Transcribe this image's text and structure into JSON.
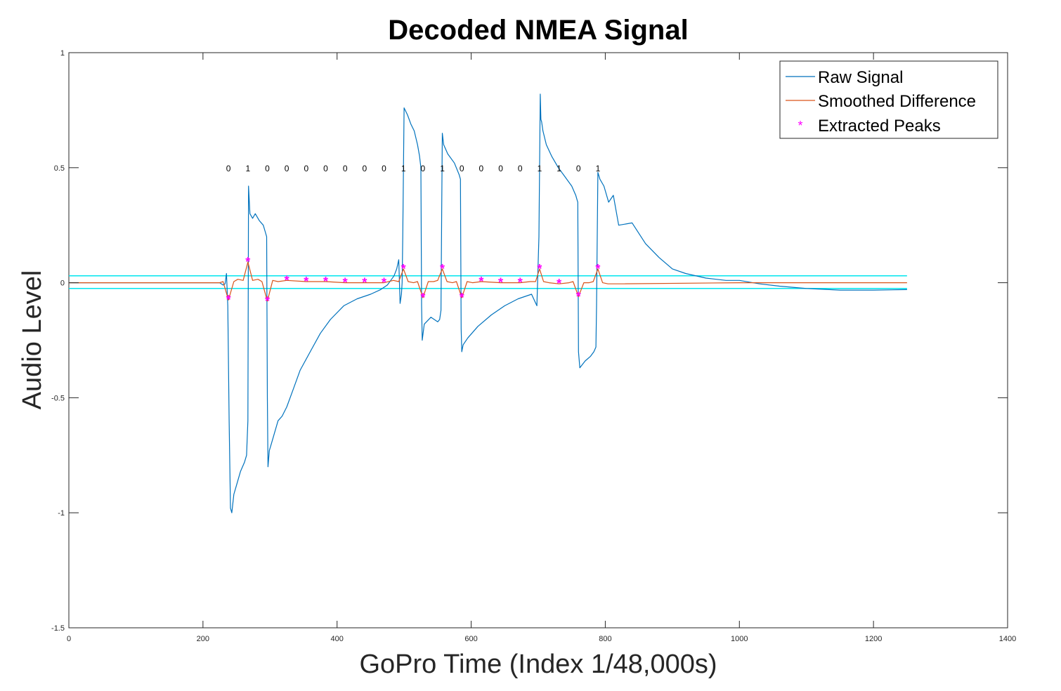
{
  "chart_data": {
    "type": "line",
    "title": "Decoded NMEA Signal",
    "xlabel": "GoPro Time (Index 1/48,000s)",
    "ylabel": "Audio Level",
    "xlim": [
      0,
      1400
    ],
    "ylim": [
      -1.5,
      1
    ],
    "xticks": [
      0,
      200,
      400,
      600,
      800,
      1000,
      1200,
      1400
    ],
    "xtick_labels": [
      "0",
      "200",
      "400",
      "600",
      "800",
      "1000",
      "1200",
      "1400"
    ],
    "yticks": [
      -1.5,
      -1,
      -0.5,
      0,
      0.5,
      1
    ],
    "ytick_labels": [
      "-1.5",
      "-1",
      "-0.5",
      "0",
      "0.5",
      "1"
    ],
    "grid": false,
    "legend_position": "top-right",
    "thresholds": [
      0.03,
      -0.025
    ],
    "threshold_color": "#00e5ee",
    "bits": {
      "y": 0.5,
      "x": [
        238,
        267,
        296,
        325,
        354,
        383,
        412,
        441,
        470,
        499,
        528,
        557,
        586,
        615,
        644,
        673,
        702,
        731,
        760,
        789
      ],
      "labels": [
        "0",
        "1",
        "0",
        "0",
        "0",
        "0",
        "0",
        "0",
        "0",
        "1",
        "0",
        "1",
        "0",
        "0",
        "0",
        "0",
        "1",
        "1",
        "0",
        "1"
      ]
    },
    "series": [
      {
        "name": "Raw Signal",
        "color": "#0072bd",
        "x": [
          0,
          100,
          200,
          225,
          230,
          233,
          235,
          237,
          239,
          241,
          243,
          246,
          250,
          256,
          262,
          265,
          267,
          268,
          270,
          274,
          278,
          284,
          290,
          293,
          295,
          296,
          297,
          299,
          302,
          306,
          312,
          318,
          325,
          335,
          345,
          360,
          375,
          390,
          410,
          430,
          450,
          465,
          475,
          480,
          485,
          489,
          492,
          494,
          496,
          497,
          498,
          500,
          505,
          510,
          515,
          520,
          523,
          525,
          526,
          527,
          530,
          540,
          550,
          553,
          555,
          556,
          557,
          559,
          565,
          575,
          582,
          584,
          585,
          586,
          588,
          595,
          610,
          630,
          650,
          670,
          690,
          698,
          701,
          703,
          704,
          705,
          707,
          712,
          720,
          730,
          740,
          750,
          756,
          758,
          759,
          760,
          762,
          770,
          778,
          783,
          786,
          787,
          789,
          792,
          798,
          805,
          812,
          820,
          840,
          860,
          880,
          900,
          920,
          950,
          980,
          1000,
          1030,
          1060,
          1100,
          1150,
          1200,
          1250
        ],
        "y": [
          0,
          0,
          0,
          0,
          -0.01,
          -0.005,
          0.04,
          -0.1,
          -0.6,
          -0.98,
          -1.0,
          -0.92,
          -0.88,
          -0.82,
          -0.78,
          -0.75,
          -0.6,
          0.42,
          0.3,
          0.28,
          0.3,
          0.27,
          0.25,
          0.22,
          0.2,
          -0.5,
          -0.8,
          -0.73,
          -0.7,
          -0.66,
          -0.6,
          -0.58,
          -0.54,
          -0.46,
          -0.38,
          -0.3,
          -0.22,
          -0.16,
          -0.1,
          -0.07,
          -0.05,
          -0.03,
          -0.01,
          0.01,
          0.03,
          0.06,
          0.1,
          -0.09,
          -0.05,
          0.0,
          0.2,
          0.76,
          0.73,
          0.69,
          0.66,
          0.6,
          0.55,
          0.5,
          -0.1,
          -0.25,
          -0.18,
          -0.15,
          -0.17,
          -0.16,
          -0.12,
          0.3,
          0.65,
          0.6,
          0.56,
          0.52,
          0.47,
          0.45,
          -0.2,
          -0.3,
          -0.27,
          -0.24,
          -0.19,
          -0.14,
          -0.1,
          -0.07,
          -0.05,
          -0.1,
          0.2,
          0.82,
          0.71,
          0.7,
          0.66,
          0.6,
          0.55,
          0.5,
          0.46,
          0.42,
          0.38,
          0.36,
          0.35,
          -0.3,
          -0.37,
          -0.34,
          -0.32,
          -0.3,
          -0.28,
          -0.1,
          0.48,
          0.45,
          0.42,
          0.35,
          0.38,
          0.25,
          0.26,
          0.17,
          0.11,
          0.06,
          0.04,
          0.02,
          0.01,
          0.01,
          -0.005,
          -0.015,
          -0.025,
          -0.032,
          -0.032,
          -0.03
        ]
      },
      {
        "name": "Smoothed Difference",
        "color": "#d95319",
        "x": [
          0,
          200,
          225,
          230,
          238,
          246,
          252,
          260,
          267,
          274,
          282,
          288,
          296,
          304,
          312,
          325,
          354,
          383,
          412,
          441,
          470,
          484,
          492,
          499,
          506,
          514,
          520,
          528,
          536,
          544,
          550,
          557,
          564,
          572,
          578,
          586,
          594,
          602,
          615,
          644,
          673,
          688,
          696,
          702,
          708,
          716,
          731,
          746,
          752,
          760,
          768,
          776,
          782,
          789,
          796,
          804,
          820,
          1000,
          1250
        ],
        "y": [
          0,
          0,
          0,
          0.005,
          -0.075,
          0.005,
          0.015,
          0.01,
          0.09,
          0.01,
          0.015,
          0.005,
          -0.08,
          0.01,
          0.005,
          0.01,
          0.005,
          0.005,
          0.0,
          0.0,
          0.0,
          0.01,
          0.005,
          0.06,
          0.005,
          0.0,
          0.005,
          -0.065,
          0.005,
          0.005,
          0.01,
          0.06,
          0.005,
          0.0,
          0.005,
          -0.065,
          0.005,
          0.0,
          0.005,
          0.0,
          0.0,
          0.005,
          0.005,
          0.06,
          0.005,
          0.0,
          -0.005,
          0.0,
          0.005,
          -0.06,
          0.0,
          0.0,
          0.005,
          0.06,
          0.0,
          -0.005,
          -0.005,
          0.0,
          0.0
        ]
      },
      {
        "name": "Extracted Peaks",
        "color": "#ff00ff",
        "marker": "*",
        "x": [
          238,
          267,
          296,
          325,
          354,
          383,
          412,
          441,
          470,
          499,
          528,
          557,
          586,
          615,
          644,
          673,
          702,
          731,
          760,
          789
        ],
        "y": [
          -0.075,
          0.09,
          -0.08,
          0.01,
          0.005,
          0.005,
          0.0,
          0.0,
          0.0,
          0.06,
          -0.065,
          0.06,
          -0.065,
          0.005,
          0.0,
          0.0,
          0.06,
          -0.005,
          -0.06,
          0.06
        ]
      }
    ]
  }
}
